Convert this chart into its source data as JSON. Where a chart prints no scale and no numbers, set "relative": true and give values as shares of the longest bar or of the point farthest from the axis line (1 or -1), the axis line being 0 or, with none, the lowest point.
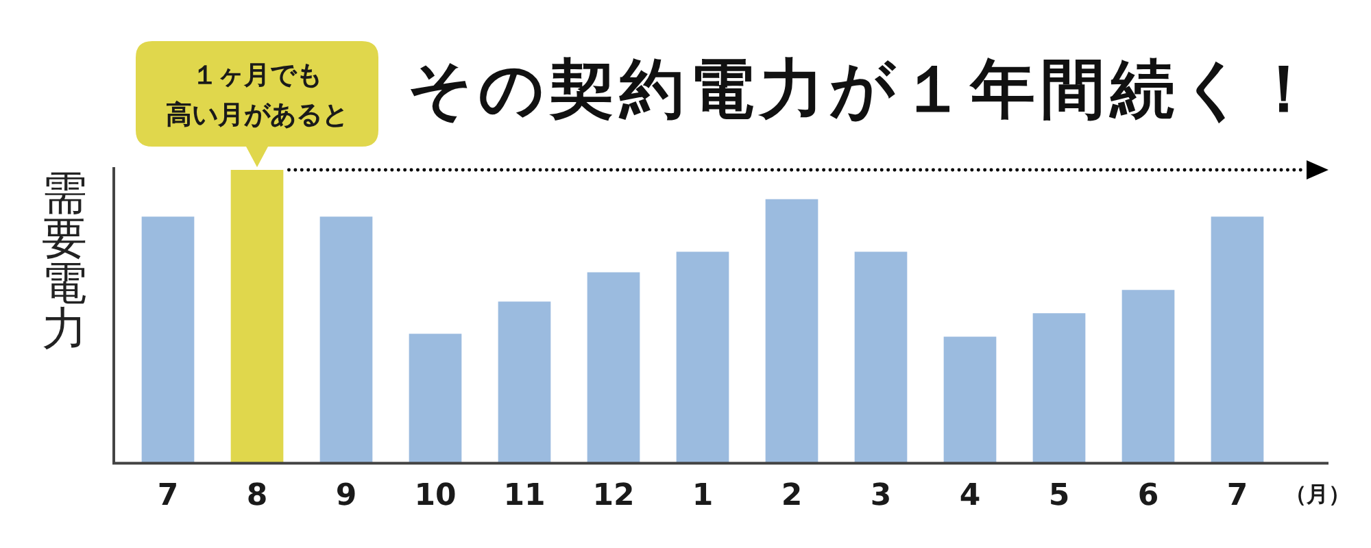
{
  "chart_data": {
    "type": "bar",
    "title": "その契約電力が１年間続く！",
    "xlabel": "（月）",
    "ylabel": "需要電力",
    "categories": [
      "7",
      "8",
      "9",
      "10",
      "11",
      "12",
      "1",
      "2",
      "3",
      "4",
      "5",
      "6",
      "7"
    ],
    "values": [
      0.84,
      1,
      0.84,
      0.44,
      0.55,
      0.65,
      0.72,
      0.9,
      0.72,
      0.43,
      0.51,
      0.59,
      0.84
    ],
    "colors": [
      "#9bbbdf",
      "#e0d74c",
      "#9bbbdf",
      "#9bbbdf",
      "#9bbbdf",
      "#9bbbdf",
      "#9bbbdf",
      "#9bbbdf",
      "#9bbbdf",
      "#9bbbdf",
      "#9bbbdf",
      "#9bbbdf",
      "#9bbbdf"
    ],
    "relative": true,
    "ref_lines": [
      {
        "axis": "y",
        "value": 1,
        "color": "#000000",
        "line_style": "dotted"
      }
    ],
    "annotations": [
      {
        "text": "１ヶ月でも高い月があると",
        "x": "8",
        "y": 1
      }
    ]
  }
}
